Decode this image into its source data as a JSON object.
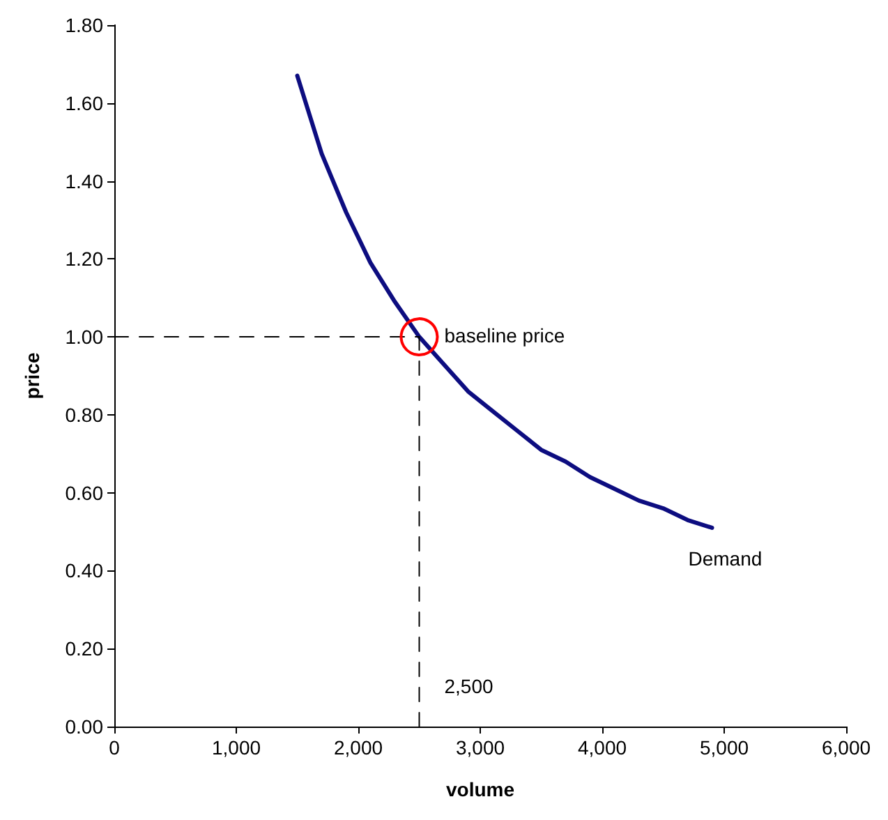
{
  "chart_data": {
    "type": "line",
    "xlabel": "volume",
    "ylabel": "price",
    "xlim": [
      0,
      6000
    ],
    "xticks": [
      {
        "value": 0,
        "label": "0"
      },
      {
        "value": 1000,
        "label": "1,000"
      },
      {
        "value": 2000,
        "label": "2,000"
      },
      {
        "value": 3000,
        "label": "3,000"
      },
      {
        "value": 4000,
        "label": "4,000"
      },
      {
        "value": 5000,
        "label": "5,000"
      },
      {
        "value": 6000,
        "label": "6,000"
      }
    ],
    "ylim": [
      0,
      1.8
    ],
    "yticks": [
      {
        "value": 0,
        "label": "0.00"
      },
      {
        "value": 0.2,
        "label": "0.20"
      },
      {
        "value": 0.4,
        "label": "0.40"
      },
      {
        "value": 0.6,
        "label": "0.60"
      },
      {
        "value": 0.8,
        "label": "0.80"
      },
      {
        "value": 1,
        "label": "1.00"
      },
      {
        "value": 1.2,
        "label": "1.20"
      },
      {
        "value": 1.4,
        "label": "1.40"
      },
      {
        "value": 1.6,
        "label": "1.60"
      },
      {
        "value": 1.8,
        "label": "1.80"
      }
    ],
    "grid": false,
    "legend": false,
    "series": [
      {
        "name": "Demand",
        "color": "#0d0d80",
        "marker": "none",
        "line_style": "solid",
        "x": [
          1500,
          1700,
          1900,
          2100,
          2300,
          2500,
          2700,
          2900,
          3100,
          3300,
          3500,
          3700,
          3900,
          4100,
          4300,
          4500,
          4700,
          4900
        ],
        "values": [
          1.67,
          1.47,
          1.32,
          1.19,
          1.09,
          1.0,
          0.93,
          0.86,
          0.81,
          0.76,
          0.71,
          0.68,
          0.64,
          0.61,
          0.58,
          0.56,
          0.53,
          0.51
        ]
      },
      {
        "color": "#000000",
        "marker": "none",
        "line_style": "dashed",
        "x": [
          0,
          2500
        ],
        "values": [
          1,
          1
        ]
      },
      {
        "color": "#000000",
        "marker": "none",
        "line_style": "dashed",
        "x": [
          2500,
          2500
        ],
        "values": [
          0,
          1
        ]
      },
      {
        "type": "scatter",
        "color": "#ff0000",
        "marker": "circle",
        "x": [
          2500
        ],
        "values": [
          1
        ]
      }
    ],
    "annotations": [
      {
        "text": "baseline price",
        "x": 2500,
        "y": 1
      },
      {
        "text": "2,500",
        "x": 2500,
        "y": 0.1
      }
    ]
  }
}
